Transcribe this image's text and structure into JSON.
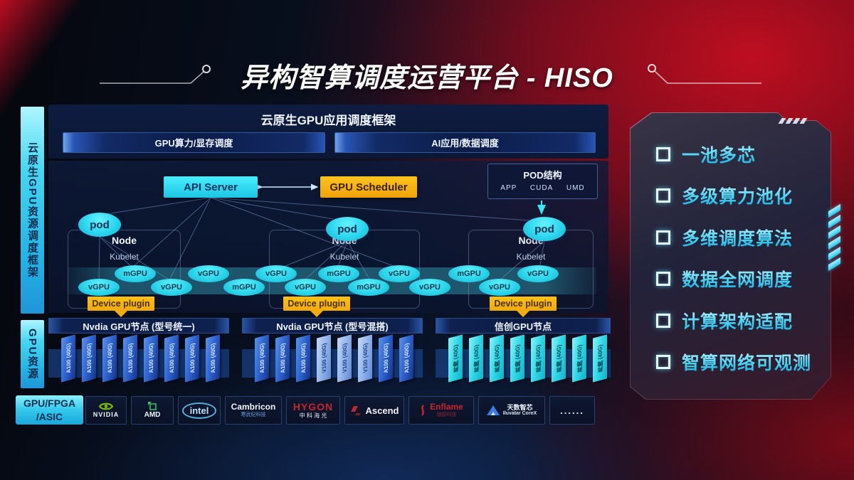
{
  "page": {
    "title": "异构智算调度运营平台 - HISO"
  },
  "sidebar": {
    "framework": "云原生GPU资源调度框架",
    "gpu_resource": "GPU资源",
    "hardware_line1": "GPU/FPGA",
    "hardware_line2": "/ASIC"
  },
  "app_framework": {
    "title": "云原生GPU应用调度框架",
    "left_bar": "GPU算力/显存调度",
    "right_bar": "AI应用/数据调度"
  },
  "scheduling": {
    "api_server": "API Server",
    "gpu_scheduler": "GPU Scheduler",
    "pod_structure": {
      "title": "POD结构",
      "items": [
        "APP",
        "CUDA",
        "UMD"
      ]
    },
    "pod_label": "pod",
    "node_label": "Node",
    "kubelet_label": "Kubelet",
    "device_plugin_label": "Device plugin",
    "gpu_units": [
      {
        "label": "vGPU",
        "row": "low"
      },
      {
        "label": "mGPU",
        "row": "up"
      },
      {
        "label": "vGPU",
        "row": "low"
      },
      {
        "label": "vGPU",
        "row": "up"
      },
      {
        "label": "mGPU",
        "row": "low"
      },
      {
        "label": "vGPU",
        "row": "up"
      },
      {
        "label": "vGPU",
        "row": "low"
      },
      {
        "label": "mGPU",
        "row": "up"
      },
      {
        "label": "mGPU",
        "row": "low"
      },
      {
        "label": "vGPU",
        "row": "up"
      },
      {
        "label": "vGPU",
        "row": "low"
      },
      {
        "label": "mGPU",
        "row": "up"
      },
      {
        "label": "vGPU",
        "row": "low"
      },
      {
        "label": "vGPU",
        "row": "up"
      }
    ]
  },
  "gpu_node_sections": [
    {
      "header": "Nvdia GPU节点 (型号统一)",
      "cards": [
        {
          "label": "A100 (40G)",
          "variant": "blue"
        },
        {
          "label": "A100 (40G)",
          "variant": "blue"
        },
        {
          "label": "A100 (40G)",
          "variant": "blue"
        },
        {
          "label": "A100 (40G)",
          "variant": "blue"
        },
        {
          "label": "A100 (40G)",
          "variant": "blue"
        },
        {
          "label": "A100 (40G)",
          "variant": "blue"
        },
        {
          "label": "A100 (40G)",
          "variant": "blue"
        },
        {
          "label": "A100 (40G)",
          "variant": "blue"
        }
      ]
    },
    {
      "header": "Nvdia GPU节点 (型号混搭)",
      "cards": [
        {
          "label": "A100 (40G)",
          "variant": "blue"
        },
        {
          "label": "A100 (40G)",
          "variant": "blue"
        },
        {
          "label": "A100 (40G)",
          "variant": "blue"
        },
        {
          "label": "V100 (40G)",
          "variant": "light"
        },
        {
          "label": "V100 (40G)",
          "variant": "light"
        },
        {
          "label": "V100 (40G)",
          "variant": "light"
        },
        {
          "label": "A100 (40G)",
          "variant": "blue"
        },
        {
          "label": "A100 (40G)",
          "variant": "blue"
        }
      ]
    },
    {
      "header": "信创GPU节点",
      "cards": [
        {
          "label": "昇腾 (40G)",
          "variant": "cyan"
        },
        {
          "label": "昇腾 (40G)",
          "variant": "cyan"
        },
        {
          "label": "昇腾 (40G)",
          "variant": "cyan"
        },
        {
          "label": "昇腾 (40G)",
          "variant": "cyan"
        },
        {
          "label": "昇腾 (40G)",
          "variant": "cyan"
        },
        {
          "label": "昇腾 (40G)",
          "variant": "cyan"
        },
        {
          "label": "昇腾 (40G)",
          "variant": "cyan"
        },
        {
          "label": "昇腾 (40G)",
          "variant": "cyan"
        }
      ]
    }
  ],
  "vendors": {
    "nvidia": {
      "name": "NVIDIA"
    },
    "amd": {
      "name": "AMD"
    },
    "intel": {
      "name": "intel"
    },
    "cambricon": {
      "name": "Cambricon",
      "sub": "寒武纪科技"
    },
    "hygon": {
      "name": "HYGON",
      "sub": "中 科 海 光"
    },
    "ascend": {
      "name": "Ascend"
    },
    "enflame": {
      "name": "Enflame",
      "sub": "燧原科技"
    },
    "iluvatar": {
      "name": "天数智芯",
      "sub": "Iluvatar CoreX"
    },
    "more": {
      "name": "......"
    }
  },
  "features": {
    "items": [
      "一池多芯",
      "多级算力池化",
      "多维调度算法",
      "数据全网调度",
      "计算架构适配",
      "智算网络可观测"
    ]
  },
  "colors": {
    "cyan": "#35e6f5",
    "yellow": "#f7b70d",
    "card_blue": "#2f66d2",
    "card_light": "#93b5ec",
    "card_cyan": "#2ed8e6",
    "panel_navy": "#0c1a3a",
    "accent_red": "#c00e22"
  }
}
